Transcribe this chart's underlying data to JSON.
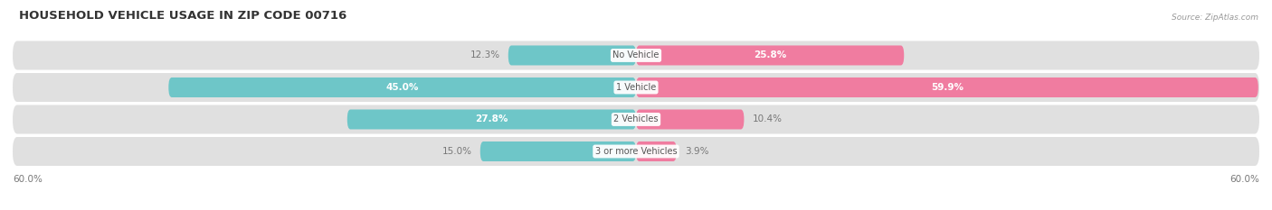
{
  "title": "HOUSEHOLD VEHICLE USAGE IN ZIP CODE 00716",
  "source": "Source: ZipAtlas.com",
  "categories": [
    "No Vehicle",
    "1 Vehicle",
    "2 Vehicles",
    "3 or more Vehicles"
  ],
  "owner_values": [
    12.3,
    45.0,
    27.8,
    15.0
  ],
  "renter_values": [
    25.8,
    59.9,
    10.4,
    3.9
  ],
  "owner_color": "#6ec6c8",
  "renter_color": "#f07ca0",
  "axis_max": 60.0,
  "bar_height": 0.62,
  "title_fontsize": 9.5,
  "label_fontsize": 7.5,
  "category_fontsize": 7.0,
  "axis_label_fontsize": 7.5,
  "legend_fontsize": 7.5,
  "background_color": "#ffffff",
  "row_bg_light": "#f5f5f5",
  "row_bg_dark": "#ebebeb",
  "track_color": "#e0e0e0",
  "label_inside_color": "#ffffff",
  "label_outside_color": "#777777"
}
